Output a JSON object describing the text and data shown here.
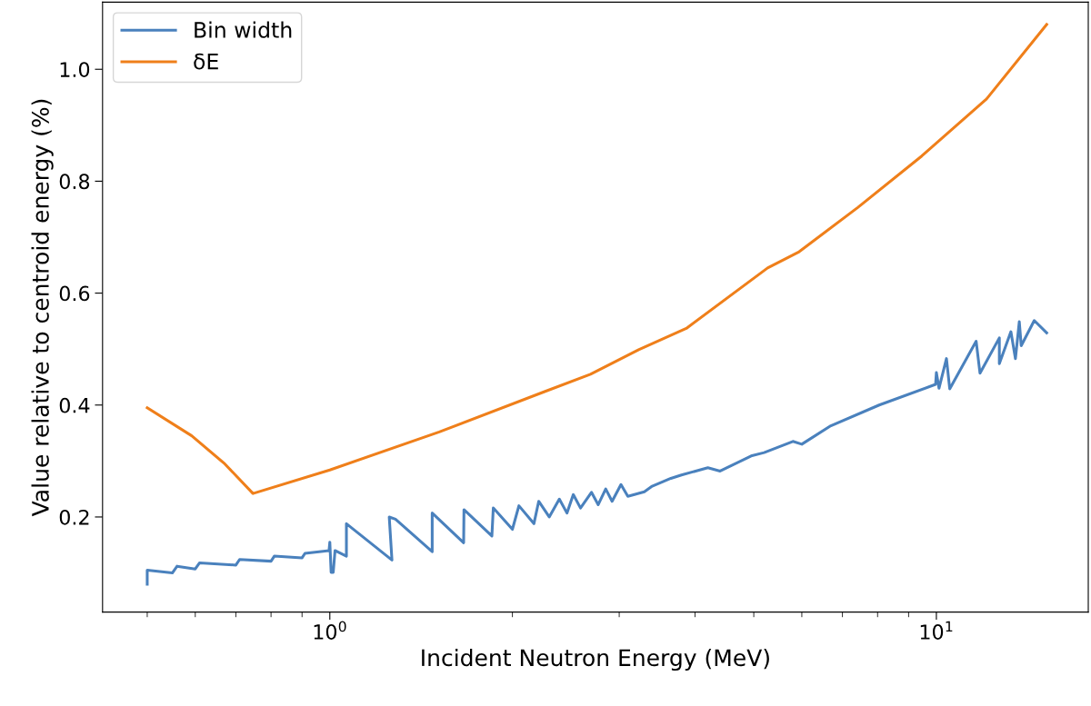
{
  "chart_data": {
    "type": "line",
    "xlabel": "Incident Neutron Energy (MeV)",
    "ylabel": "Value relative to centroid energy (%)",
    "log": "x",
    "xlim": [
      0.422,
      17.8
    ],
    "ylim": [
      0.03,
      1.12
    ],
    "xticks": [
      {
        "value": 1,
        "label": "10$^{0}$"
      },
      {
        "value": 10,
        "label": "10$^{1}$"
      }
    ],
    "yticks": [
      0.2,
      0.4,
      0.6,
      0.8,
      {
        "value": 1,
        "label": "1.0"
      }
    ],
    "grid": false,
    "legend": "top left",
    "marker": "none",
    "line_style": "solid",
    "series": [
      {
        "name": "Bin width",
        "color": "#4a81bd",
        "x": [
          0.5,
          0.5,
          0.55,
          0.56,
          0.6,
          0.61,
          0.7,
          0.71,
          0.8,
          0.81,
          0.9,
          0.91,
          0.997,
          1.0,
          1.005,
          1.013,
          1.02,
          1.065,
          1.065,
          1.266,
          1.253,
          1.283,
          1.475,
          1.475,
          1.662,
          1.664,
          1.85,
          1.86,
          2.0,
          2.05,
          2.17,
          2.21,
          2.3,
          2.39,
          2.46,
          2.52,
          2.59,
          2.7,
          2.77,
          2.85,
          2.92,
          3.02,
          3.1,
          3.3,
          3.4,
          3.65,
          3.8,
          4.2,
          4.4,
          4.95,
          5.2,
          5.8,
          6.0,
          6.7,
          8.05,
          9.97,
          10.0,
          10.1,
          10.39,
          10.52,
          11.63,
          11.8,
          12.7,
          12.7,
          13.27,
          13.5,
          13.7,
          13.8,
          14.5,
          15.2
        ],
        "values": [
          0.08,
          0.105,
          0.1,
          0.112,
          0.107,
          0.118,
          0.114,
          0.124,
          0.121,
          0.13,
          0.127,
          0.135,
          0.14,
          0.155,
          0.101,
          0.101,
          0.14,
          0.13,
          0.188,
          0.123,
          0.2,
          0.196,
          0.138,
          0.207,
          0.154,
          0.213,
          0.166,
          0.216,
          0.178,
          0.22,
          0.188,
          0.228,
          0.2,
          0.232,
          0.207,
          0.24,
          0.216,
          0.244,
          0.222,
          0.25,
          0.228,
          0.258,
          0.237,
          0.245,
          0.255,
          0.269,
          0.275,
          0.288,
          0.282,
          0.309,
          0.315,
          0.335,
          0.33,
          0.363,
          0.4,
          0.437,
          0.458,
          0.43,
          0.483,
          0.429,
          0.514,
          0.457,
          0.52,
          0.474,
          0.531,
          0.483,
          0.549,
          0.506,
          0.551,
          0.529
        ]
      },
      {
        "name": "δE",
        "color": "#ef7f1a",
        "x": [
          0.5,
          0.592,
          0.671,
          0.747,
          1.0,
          1.515,
          2.26,
          2.69,
          3.23,
          3.87,
          5.27,
          5.94,
          7.42,
          9.46,
          12.1,
          15.2
        ],
        "values": [
          0.395,
          0.345,
          0.295,
          0.242,
          0.284,
          0.352,
          0.424,
          0.455,
          0.499,
          0.537,
          0.645,
          0.674,
          0.753,
          0.845,
          0.947,
          1.08
        ]
      }
    ]
  }
}
